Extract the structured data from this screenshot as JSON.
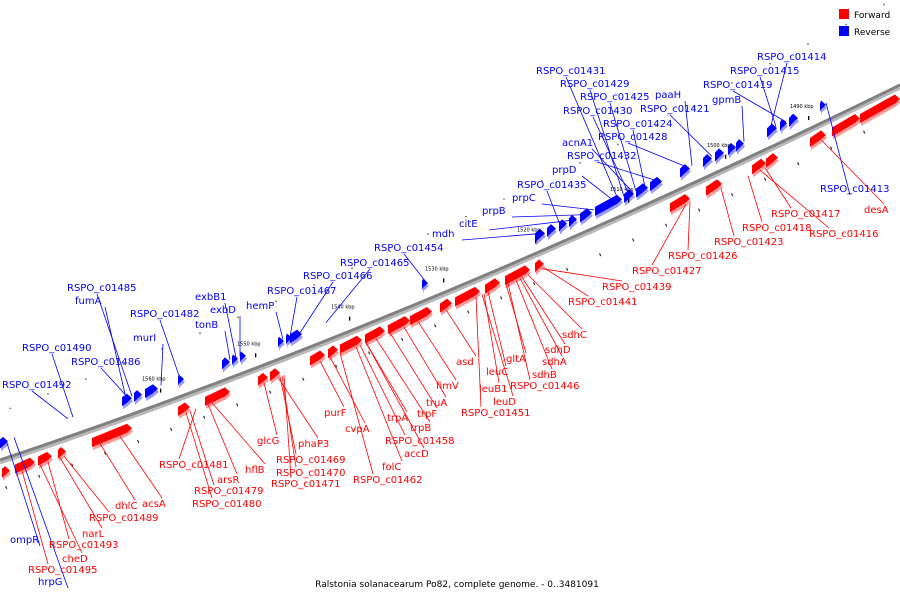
{
  "caption": "Ralstonia solanacearum Po82, complete genome. - 0..3481091",
  "legend": [
    {
      "label": "Forward",
      "color": "#ff0000"
    },
    {
      "label": "Reverse",
      "color": "#0000ff"
    }
  ],
  "colors": {
    "forward": "#ff0000",
    "reverse": "#0000ff",
    "backbone": "#808080"
  },
  "ticks": [
    "1490 kbp",
    "1500 kbp",
    "1510 kbp",
    "1520 kbp",
    "1530 kbp",
    "1540 kbp",
    "1550 kbp",
    "1560 kbp"
  ],
  "reverse_labels": [
    "RSPO_c01414",
    "RSPO_c01415",
    "RSPO_c01419",
    "gpmB",
    "paaH",
    "RSPO_c01421",
    "RSPO_c01431",
    "RSPO_c01429",
    "RSPO_c01425",
    "RSPO_c01430",
    "RSPO_c01424",
    "RSPO_c01428",
    "acnA1",
    "RSPO_c01432",
    "prpD",
    "RSPO_c01435",
    "prpC",
    "prpB",
    "citE",
    "mdh",
    "RSPO_c01454",
    "RSPO_c01465",
    "RSPO_c01466",
    "RSPO_c01467",
    "hemP",
    "exbB1",
    "exbD",
    "tonB",
    "RSPO_c01482",
    "murI",
    "RSPO_c01485",
    "fumA",
    "RSPO_c01486",
    "RSPO_c01490",
    "RSPO_c01492",
    "RSPO_c01413",
    "ompR",
    "hrpG"
  ],
  "forward_labels": [
    "desA",
    "RSPO_c01417",
    "RSPO_c01418",
    "RSPO_c01416",
    "RSPO_c01423",
    "RSPO_c01426",
    "RSPO_c01427",
    "RSPO_c01439",
    "RSPO_c01441",
    "sdhC",
    "sdhD",
    "sdhA",
    "sdhB",
    "RSPO_c01446",
    "gltA",
    "leuC",
    "leuB1",
    "leuD",
    "RSPO_c01451",
    "asd",
    "fimV",
    "truA",
    "trpF",
    "trpB",
    "trpA",
    "accD",
    "RSPO_c01458",
    "folC",
    "RSPO_c01462",
    "cvpA",
    "purF",
    "glcG",
    "phaP3",
    "RSPO_c01469",
    "RSPO_c01470",
    "RSPO_c01471",
    "hflB",
    "arsR",
    "RSPO_c01481",
    "RSPO_c01479",
    "RSPO_c01480",
    "acsA",
    "dhlC",
    "RSPO_c01489",
    "narL",
    "RSPO_c01493",
    "cheD",
    "RSPO_c01495"
  ]
}
